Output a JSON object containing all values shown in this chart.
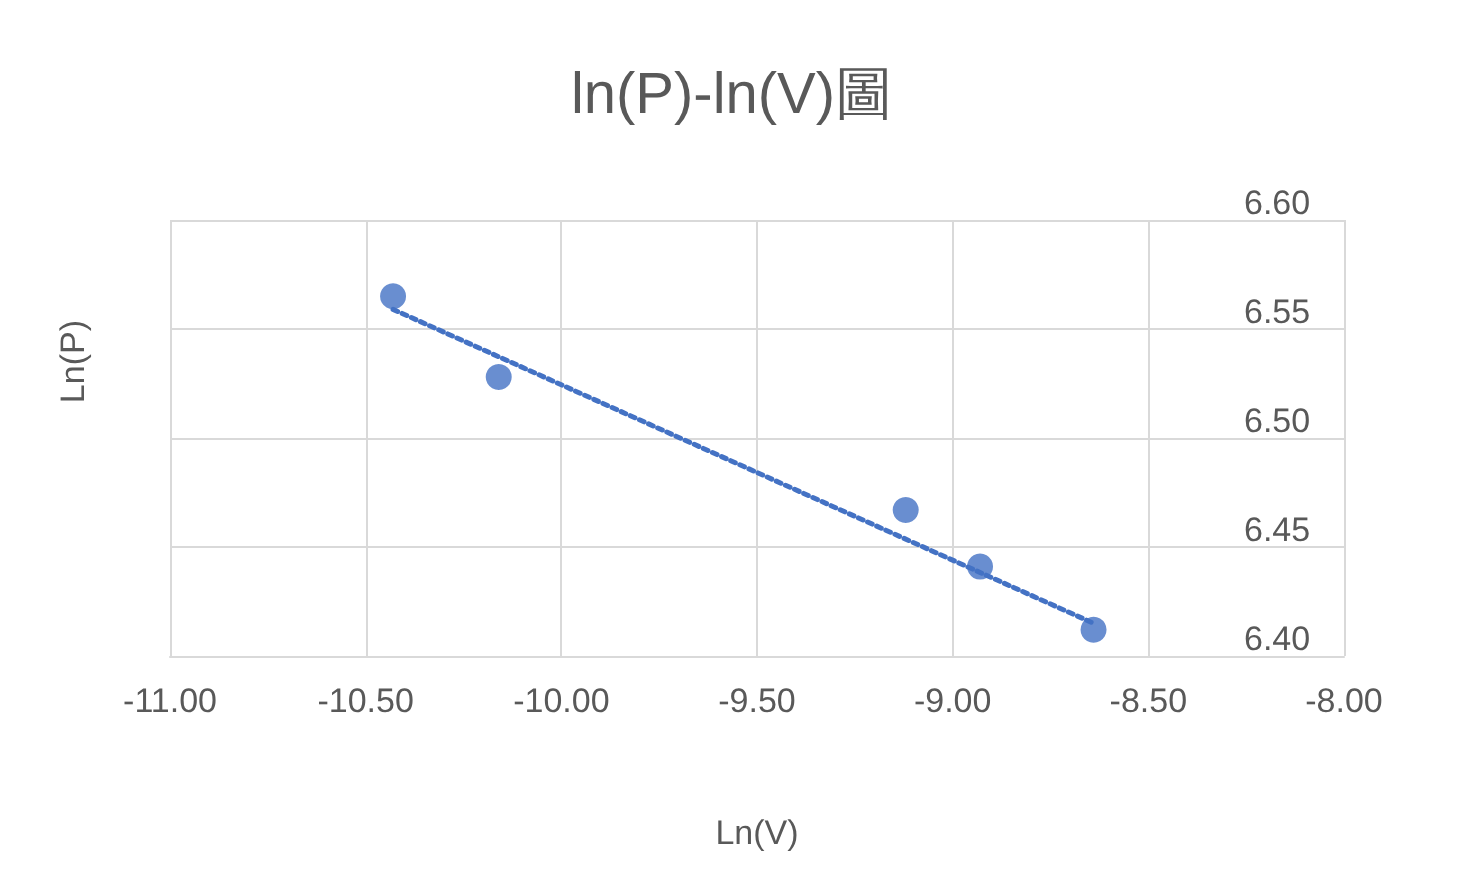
{
  "chart_data": {
    "type": "scatter",
    "title": "ln(P)-ln(V)圖",
    "xlabel": "Ln(V)",
    "ylabel": "Ln(P)",
    "xlim": [
      -11,
      -8
    ],
    "xticks": [
      {
        "value": -11,
        "label": "-11.00"
      },
      {
        "value": -10.5,
        "label": "-10.50"
      },
      {
        "value": -10,
        "label": "-10.00"
      },
      {
        "value": -9.5,
        "label": "-9.50"
      },
      {
        "value": -9,
        "label": "-9.00"
      },
      {
        "value": -8.5,
        "label": "-8.50"
      },
      {
        "value": -8,
        "label": "-8.00"
      }
    ],
    "ylim": [
      6.4,
      6.6
    ],
    "yticks": [
      {
        "value": 6.4,
        "label": "6.40"
      },
      {
        "value": 6.45,
        "label": "6.45"
      },
      {
        "value": 6.5,
        "label": "6.50"
      },
      {
        "value": 6.55,
        "label": "6.55"
      },
      {
        "value": 6.6,
        "label": "6.60"
      }
    ],
    "grid": true,
    "marker": "circle",
    "series": [
      {
        "color": "#4472c4",
        "x": [
          -10.43,
          -10.16,
          -9.12,
          -8.93,
          -8.64
        ],
        "values": [
          6.565,
          6.528,
          6.467,
          6.441,
          6.412
        ]
      },
      {
        "type": "line",
        "color": "#4472c4",
        "line_style": "dotted",
        "marker": "none",
        "x": [
          -10.43,
          -8.64
        ],
        "values": [
          6.559,
          6.415
        ]
      }
    ]
  }
}
